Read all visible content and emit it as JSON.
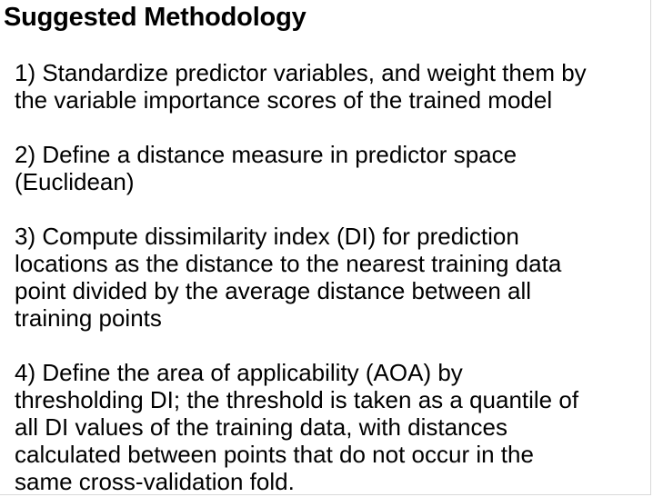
{
  "document": {
    "title": "Suggested Methodology",
    "steps": [
      "1) Standardize predictor variables, and weight them by\nthe variable importance scores of the trained model",
      "2) Define a distance measure in predictor space\n(Euclidean)",
      "3) Compute dissimilarity index (DI) for prediction\nlocations as the distance to the nearest training data\npoint divided by the average distance between all\ntraining points",
      "4) Define the area of applicability (AOA) by\nthresholding DI; the threshold is taken as a quantile of\nall DI values of the training data, with distances\ncalculated between points that do not occur in the\nsame cross-validation fold."
    ]
  }
}
